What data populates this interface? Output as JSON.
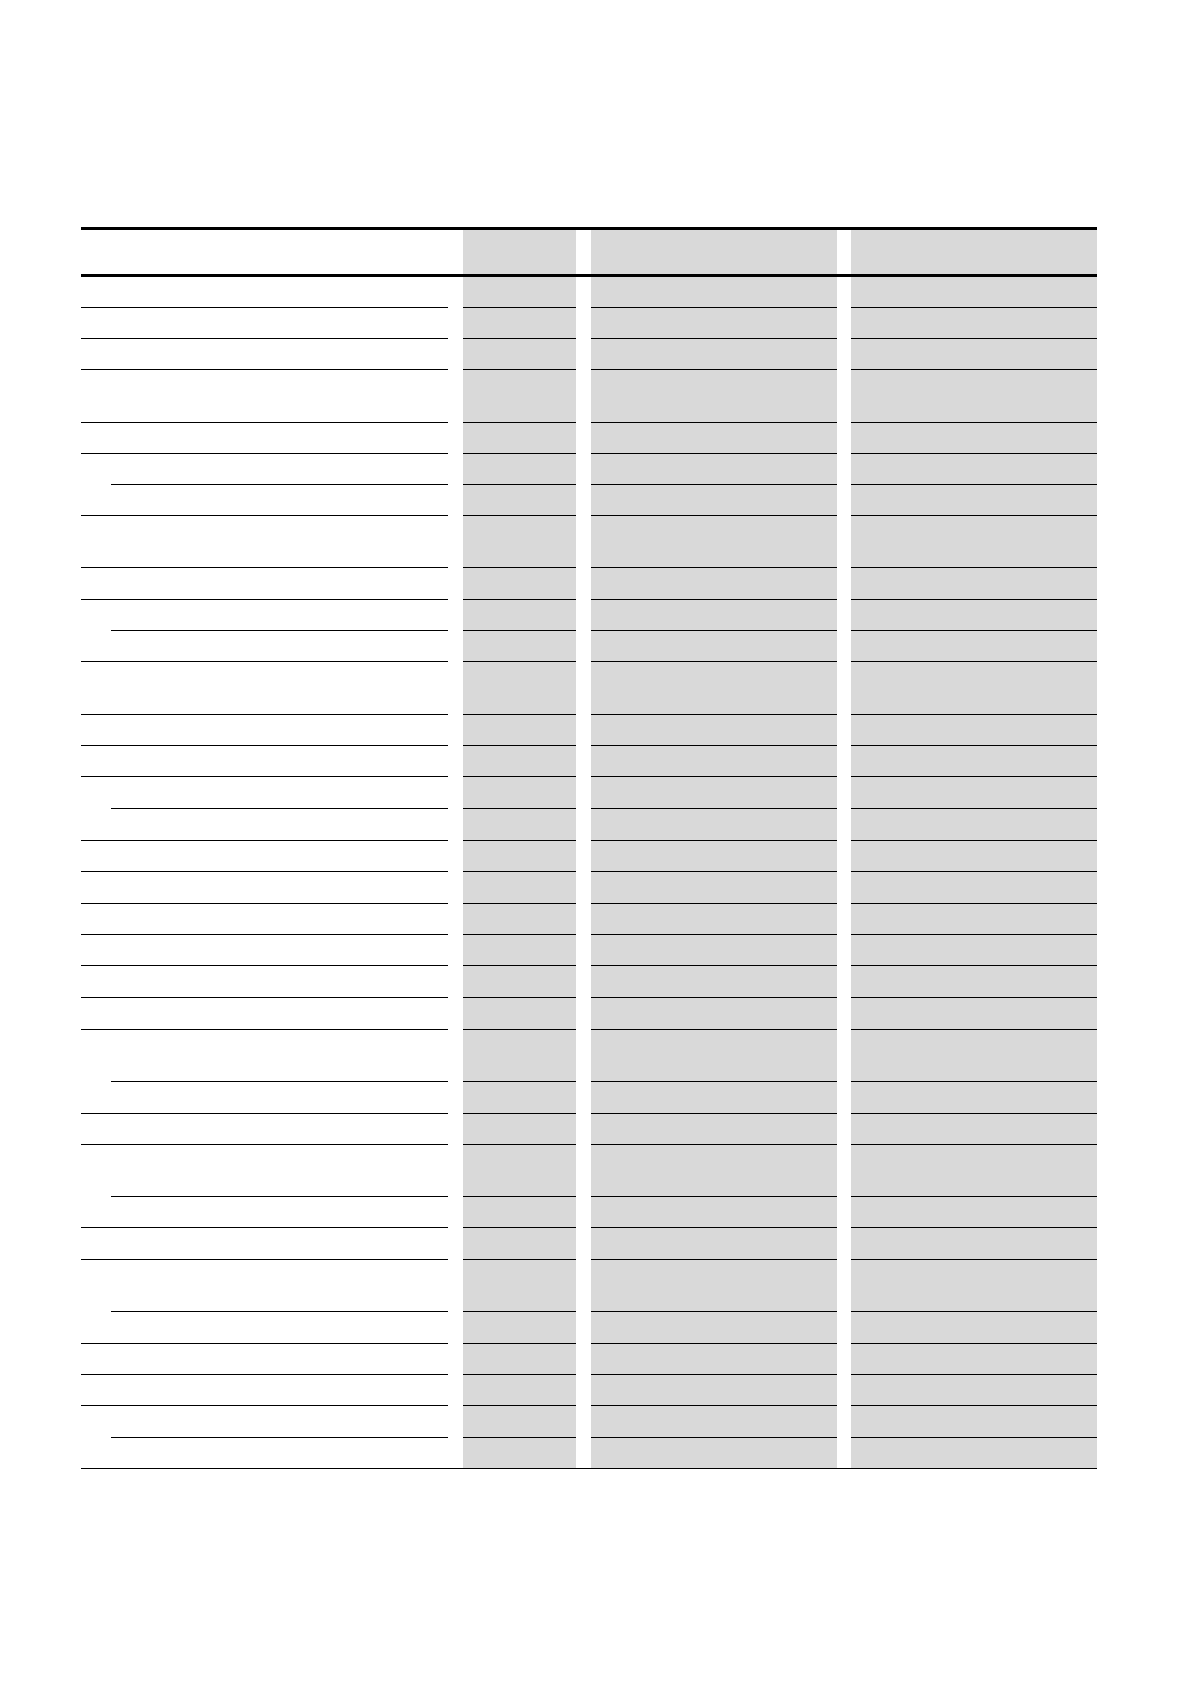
{
  "table": {
    "header": [
      "",
      "",
      "",
      ""
    ],
    "rows": [
      [
        "",
        "",
        "",
        ""
      ],
      [
        "",
        "",
        "",
        ""
      ],
      [
        "",
        "",
        "",
        ""
      ],
      [
        "",
        "",
        "",
        ""
      ],
      [
        "",
        "",
        "",
        ""
      ],
      [
        "",
        "",
        "",
        ""
      ],
      [
        "",
        "",
        "",
        ""
      ],
      [
        "",
        "",
        "",
        ""
      ],
      [
        "",
        "",
        "",
        ""
      ],
      [
        "",
        "",
        "",
        ""
      ],
      [
        "",
        "",
        "",
        ""
      ],
      [
        "",
        "",
        "",
        ""
      ],
      [
        "",
        "",
        "",
        ""
      ],
      [
        "",
        "",
        "",
        ""
      ],
      [
        "",
        "",
        "",
        ""
      ],
      [
        "",
        "",
        "",
        ""
      ],
      [
        "",
        "",
        "",
        ""
      ],
      [
        "",
        "",
        "",
        ""
      ],
      [
        "",
        "",
        "",
        ""
      ],
      [
        "",
        "",
        "",
        ""
      ],
      [
        "",
        "",
        "",
        ""
      ],
      [
        "",
        "",
        "",
        ""
      ],
      [
        "",
        "",
        "",
        ""
      ],
      [
        "",
        "",
        "",
        ""
      ],
      [
        "",
        "",
        "",
        ""
      ],
      [
        "",
        "",
        "",
        ""
      ],
      [
        "",
        "",
        "",
        ""
      ],
      [
        "",
        "",
        "",
        ""
      ],
      [
        "",
        "",
        "",
        ""
      ],
      [
        "",
        "",
        "",
        ""
      ],
      [
        "",
        "",
        "",
        ""
      ],
      [
        "",
        "",
        "",
        ""
      ],
      [
        "",
        "",
        "",
        ""
      ],
      [
        "",
        "",
        "",
        ""
      ]
    ],
    "shaded_column_color": "#d9d9d9",
    "rule_color": "#000000"
  }
}
